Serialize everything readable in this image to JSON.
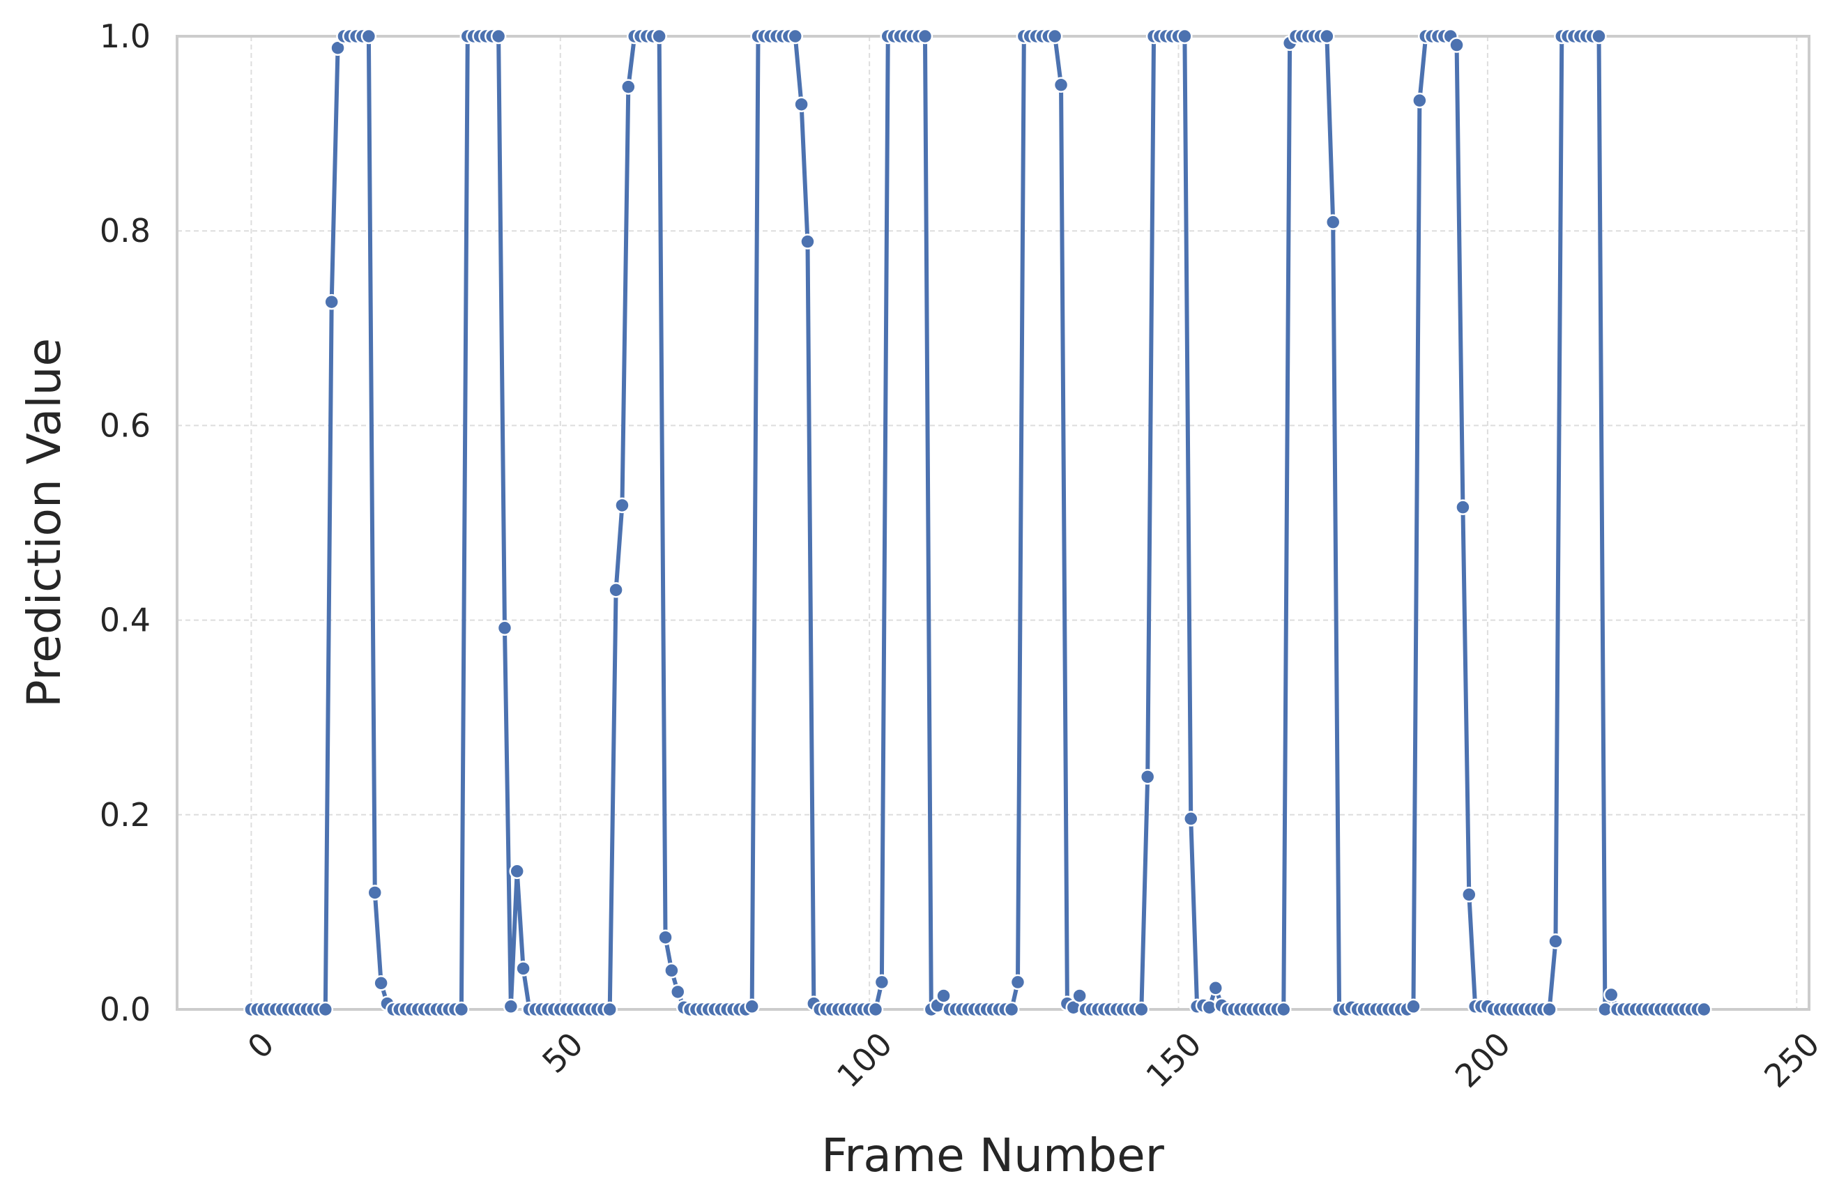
{
  "chart_data": {
    "type": "line",
    "title": "",
    "xlabel": "Frame Number",
    "ylabel": "Prediction Value",
    "xlim": [
      -12,
      252
    ],
    "ylim": [
      0,
      1
    ],
    "x_ticks": [
      0,
      50,
      100,
      150,
      200,
      250
    ],
    "y_ticks": [
      0.0,
      0.2,
      0.4,
      0.6,
      0.8,
      1.0
    ],
    "x_tick_labels": [
      "0",
      "50",
      "100",
      "150",
      "200",
      "250"
    ],
    "y_tick_labels": [
      "0.0",
      "0.2",
      "0.4",
      "0.6",
      "0.8",
      "1.0"
    ],
    "grid": true,
    "marker": "circle",
    "series": [
      {
        "color": "#4c72b0",
        "values": [
          0.0,
          0.0,
          0.0,
          0.0,
          0.0,
          0.0,
          0.0,
          0.0,
          0.0,
          0.0,
          0.0,
          0.0,
          0.0,
          0.727,
          0.988,
          1.0,
          1.0,
          1.0,
          1.0,
          1.0,
          0.12,
          0.027,
          0.006,
          0.0,
          0.0,
          0.0,
          0.0,
          0.0,
          0.0,
          0.0,
          0.0,
          0.0,
          0.0,
          0.0,
          0.0,
          1.0,
          1.0,
          1.0,
          1.0,
          1.0,
          1.0,
          0.392,
          0.003,
          0.142,
          0.042,
          0.0,
          0.0,
          0.0,
          0.0,
          0.0,
          0.0,
          0.0,
          0.0,
          0.0,
          0.0,
          0.0,
          0.0,
          0.0,
          0.0,
          0.431,
          0.518,
          0.948,
          1.0,
          1.0,
          1.0,
          1.0,
          1.0,
          0.074,
          0.04,
          0.018,
          0.002,
          0.0,
          0.0,
          0.0,
          0.0,
          0.0,
          0.0,
          0.0,
          0.0,
          0.0,
          0.0,
          0.003,
          1.0,
          1.0,
          1.0,
          1.0,
          1.0,
          1.0,
          1.0,
          0.93,
          0.789,
          0.006,
          0.0,
          0.0,
          0.0,
          0.0,
          0.0,
          0.0,
          0.0,
          0.0,
          0.0,
          0.0,
          0.028,
          1.0,
          1.0,
          1.0,
          1.0,
          1.0,
          1.0,
          1.0,
          0.0,
          0.004,
          0.014,
          0.0,
          0.0,
          0.0,
          0.0,
          0.0,
          0.0,
          0.0,
          0.0,
          0.0,
          0.0,
          0.0,
          0.028,
          1.0,
          1.0,
          1.0,
          1.0,
          1.0,
          1.0,
          0.95,
          0.006,
          0.002,
          0.014,
          0.0,
          0.0,
          0.0,
          0.0,
          0.0,
          0.0,
          0.0,
          0.0,
          0.0,
          0.0,
          0.239,
          1.0,
          1.0,
          1.0,
          1.0,
          1.0,
          1.0,
          0.196,
          0.003,
          0.004,
          0.002,
          0.022,
          0.004,
          0.0,
          0.0,
          0.0,
          0.0,
          0.0,
          0.0,
          0.0,
          0.0,
          0.0,
          0.0,
          0.993,
          1.0,
          1.0,
          1.0,
          1.0,
          1.0,
          1.0,
          0.809,
          0.0,
          0.0,
          0.002,
          0.0,
          0.0,
          0.0,
          0.0,
          0.0,
          0.0,
          0.0,
          0.0,
          0.0,
          0.003,
          0.934,
          1.0,
          1.0,
          1.0,
          1.0,
          1.0,
          0.991,
          0.516,
          0.118,
          0.003,
          0.003,
          0.003,
          0.0,
          0.0,
          0.0,
          0.0,
          0.0,
          0.0,
          0.0,
          0.0,
          0.0,
          0.0,
          0.07,
          1.0,
          1.0,
          1.0,
          1.0,
          1.0,
          1.0,
          1.0,
          0.0,
          0.015,
          0.0,
          0.0,
          0.0,
          0.0,
          0.0,
          0.0,
          0.0,
          0.0,
          0.0,
          0.0,
          0.0,
          0.0,
          0.0,
          0.0,
          0.0
        ]
      }
    ]
  }
}
